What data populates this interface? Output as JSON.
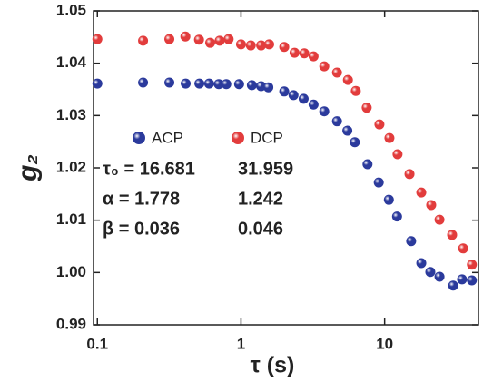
{
  "chart_data": {
    "type": "scatter",
    "x_label": "τ (s)",
    "y_label": "g₂",
    "xlog": true,
    "xlim": [
      0.094,
      45
    ],
    "xticks": [
      0.1,
      1,
      10
    ],
    "ylim": [
      0.99,
      1.05
    ],
    "yticks": [
      0.99,
      {
        "value": 1.0,
        "label": "1.00"
      },
      1.01,
      1.02,
      1.03,
      1.04,
      1.05
    ],
    "legend": "upper left",
    "series": [
      {
        "name": "ACP",
        "color": "#2b3a9c",
        "x": [
          0.1,
          0.208,
          0.317,
          0.412,
          0.513,
          0.6,
          0.7,
          0.79,
          0.97,
          1.19,
          1.38,
          1.55,
          2.0,
          2.32,
          2.73,
          3.2,
          3.8,
          4.66,
          5.5,
          6.2,
          7.6,
          9.1,
          10.7,
          12.2,
          15.3,
          18.0,
          20.8,
          24.1,
          30.0,
          34.6,
          40.5
        ],
        "values": [
          1.0361,
          1.0363,
          1.0363,
          1.0361,
          1.0361,
          1.0361,
          1.036,
          1.036,
          1.036,
          1.0358,
          1.0356,
          1.0354,
          1.0346,
          1.0339,
          1.0332,
          1.0321,
          1.0308,
          1.0289,
          1.0271,
          1.0249,
          1.0207,
          1.0172,
          1.0139,
          1.0107,
          1.006,
          1.0018,
          1.0001,
          0.9992,
          0.9975,
          0.9987,
          0.9985
        ]
      },
      {
        "name": "DCP",
        "color": "#e23c3c",
        "x": [
          0.1,
          0.208,
          0.317,
          0.41,
          0.51,
          0.61,
          0.71,
          0.82,
          1.0,
          1.17,
          1.38,
          1.57,
          2.0,
          2.36,
          2.76,
          3.2,
          3.8,
          4.66,
          5.55,
          6.3,
          7.5,
          9.2,
          10.8,
          12.3,
          14.9,
          18.0,
          21.1,
          24.1,
          29.5,
          35.2,
          40.5
        ],
        "values": [
          1.0446,
          1.0443,
          1.0446,
          1.0451,
          1.0445,
          1.0439,
          1.0443,
          1.0446,
          1.0436,
          1.0434,
          1.0434,
          1.0436,
          1.0431,
          1.042,
          1.0419,
          1.0413,
          1.0394,
          1.0382,
          1.0368,
          1.0347,
          1.0315,
          1.0283,
          1.0257,
          1.0226,
          1.0188,
          1.0153,
          1.0129,
          1.0101,
          1.0072,
          1.0046,
          1.0015
        ]
      }
    ],
    "annotations": [
      [
        "τ₀ = 16.681",
        "31.959"
      ],
      [
        "α = 1.778",
        "1.242"
      ],
      [
        "β = 0.036",
        "0.046"
      ]
    ]
  }
}
